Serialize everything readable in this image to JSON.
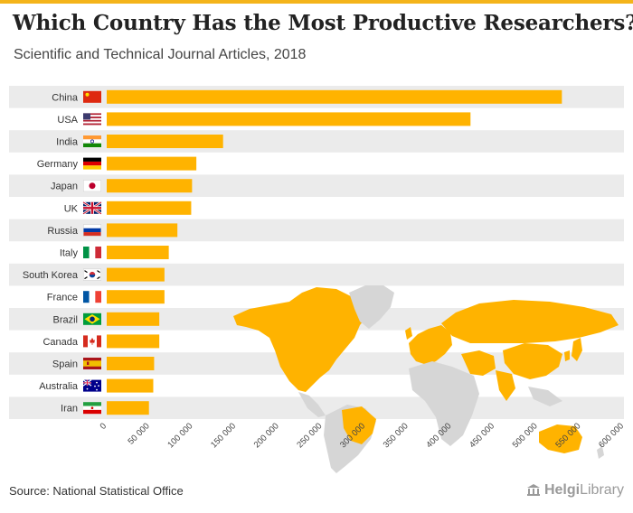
{
  "header": {
    "title": "Which Country Has the Most Productive Researchers?",
    "subtitle": "Scientific and Technical Journal Articles, 2018"
  },
  "footer": {
    "source": "Source: National Statistical Office",
    "brand_bold": "Helgi",
    "brand_light": "Library"
  },
  "colors": {
    "bar": "#ffb300",
    "accent": "#f4b41a",
    "band": "#ebebeb",
    "map_land": "#d6d6d6",
    "map_highlight": "#ffb300"
  },
  "chart_data": {
    "type": "bar",
    "orientation": "horizontal",
    "title": "Which Country Has the Most Productive Researchers?",
    "subtitle": "Scientific and Technical Journal Articles, 2018",
    "categories": [
      "China",
      "USA",
      "India",
      "Germany",
      "Japan",
      "UK",
      "Russia",
      "Italy",
      "South Korea",
      "France",
      "Brazil",
      "Canada",
      "Spain",
      "Australia",
      "Iran"
    ],
    "values": [
      528000,
      422000,
      135000,
      104000,
      99000,
      98000,
      82000,
      72000,
      67000,
      67000,
      61000,
      61000,
      55000,
      54000,
      49000
    ],
    "xlim": [
      0,
      600000
    ],
    "xticks": [
      0,
      50000,
      100000,
      150000,
      200000,
      250000,
      300000,
      350000,
      400000,
      450000,
      500000,
      550000,
      600000
    ],
    "xtick_labels": [
      "0",
      "50 000",
      "100 000",
      "150 000",
      "200 000",
      "250 000",
      "300 000",
      "350 000",
      "400 000",
      "450 000",
      "500 000",
      "550 000",
      "600 000"
    ],
    "flag_icons": [
      "china-flag-icon",
      "usa-flag-icon",
      "india-flag-icon",
      "germany-flag-icon",
      "japan-flag-icon",
      "uk-flag-icon",
      "russia-flag-icon",
      "italy-flag-icon",
      "south-korea-flag-icon",
      "france-flag-icon",
      "brazil-flag-icon",
      "canada-flag-icon",
      "spain-flag-icon",
      "australia-flag-icon",
      "iran-flag-icon"
    ],
    "background": "world-map"
  }
}
